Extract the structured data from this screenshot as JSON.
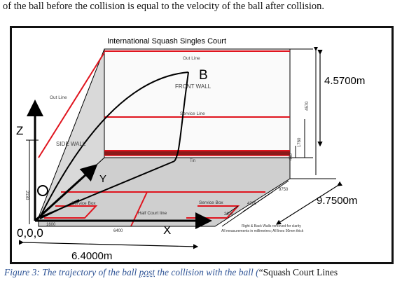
{
  "intro_text": "of the ball before the collision is equal to the velocity of the ball after collision.",
  "diagram": {
    "title": "International Squash Singles Court",
    "labels": {
      "out_line_front": "Out Line",
      "out_line_side": "Out Line",
      "point_b": "B",
      "front_wall": "FRONT WALL",
      "service_line": "Service Line",
      "side_wall": "SIDE WALL",
      "tin": "Tin",
      "service_box_left": "Service Box",
      "service_box_right": "Service Box",
      "half_court_line": "Half Court line",
      "axis_z": "Z",
      "axis_y": "Y",
      "axis_x": "X",
      "origin_o": "O",
      "origin_coords": "0,0,0",
      "note_line1": "Right & Back Walls removed for clarity",
      "note_line2": "All measurements in millimetres; All lines 50mm thick"
    },
    "dimensions": {
      "height_main": "4.5700m",
      "length_main": "9.7500m",
      "width_main": "6.4000m",
      "dim_4570": "4570",
      "dim_1780": "1780",
      "dim_430": "430",
      "dim_2130": "2130",
      "dim_9750": "9750",
      "dim_4260": "4260",
      "dim_2610": "2610",
      "dim_1600": "1600",
      "dim_6400": "6400"
    },
    "colors": {
      "red_lines": "#e0141e",
      "wall_gray": "#d6d6d6",
      "floor_gray": "#c6c6c6"
    }
  },
  "caption": {
    "part1": "Figure 3: The trajectory of the ball ",
    "part2": "post",
    "part3": " the collision with the ball (",
    "part4": "“Squash Court Lines"
  }
}
